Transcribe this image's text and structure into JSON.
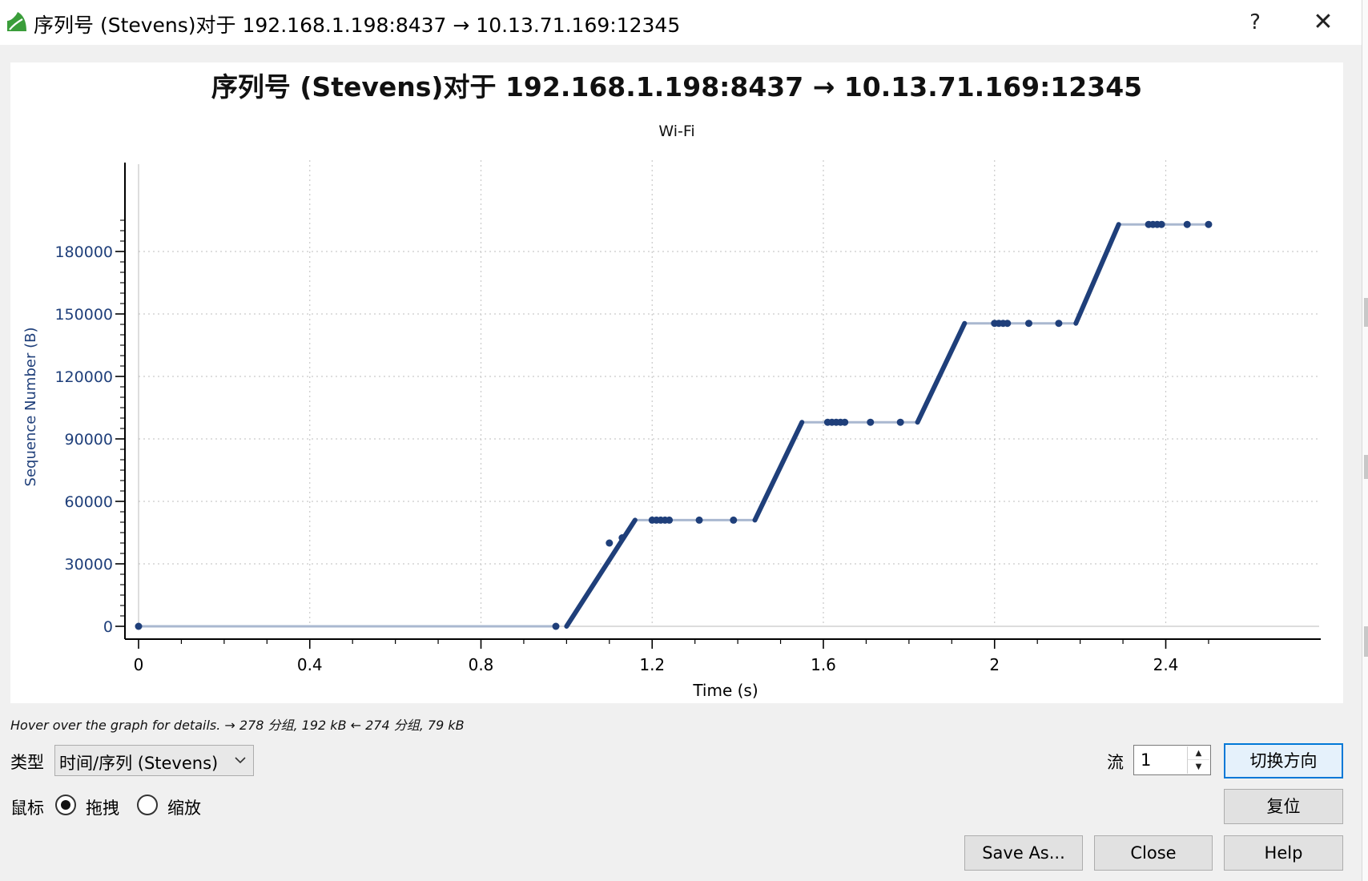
{
  "window": {
    "title": "序列号 (Stevens)对于 192.168.1.198:8437 → 10.13.71.169:12345",
    "help_glyph": "?",
    "close_glyph": "✕",
    "icon": "wireshark-fin-icon"
  },
  "chart_data": {
    "type": "scatter",
    "title": "序列号 (Stevens)对于 192.168.1.198:8437 → 10.13.71.169:12345",
    "subtitle": "Wi-Fi",
    "xlabel": "Time (s)",
    "ylabel": "Sequence Number (B)",
    "xlim": [
      0,
      2.52
    ],
    "ylim": [
      -5000,
      199000
    ],
    "xticks": [
      0,
      0.4,
      0.8,
      1.2,
      1.6,
      2,
      2.4
    ],
    "xtick_labels": [
      "0",
      "0.4",
      "0.8",
      "1.2",
      "1.6",
      "2",
      "2.4"
    ],
    "yticks": [
      0,
      30000,
      60000,
      90000,
      120000,
      150000,
      180000
    ],
    "ytick_labels": [
      "0",
      "30000",
      "60000",
      "90000",
      "120000",
      "150000",
      "180000"
    ],
    "grid": true,
    "series_color": "#1f3f7a",
    "line_color": "#aab8d0",
    "ramps": [
      {
        "x": [
          1.0,
          1.16
        ],
        "y": [
          0,
          51000
        ]
      },
      {
        "x": [
          1.44,
          1.55
        ],
        "y": [
          51000,
          98000
        ]
      },
      {
        "x": [
          1.82,
          1.93
        ],
        "y": [
          98000,
          145500
        ]
      },
      {
        "x": [
          2.19,
          2.29
        ],
        "y": [
          145500,
          193000
        ]
      }
    ],
    "flat_segments": [
      {
        "x": [
          0.0,
          0.975
        ],
        "y": 0
      },
      {
        "x": [
          1.16,
          1.44
        ],
        "y": 51000
      },
      {
        "x": [
          1.55,
          1.82
        ],
        "y": 98000
      },
      {
        "x": [
          1.93,
          2.19
        ],
        "y": 145500
      },
      {
        "x": [
          2.29,
          2.5
        ],
        "y": 193000
      }
    ],
    "points": [
      {
        "x": 0.0,
        "y": 0
      },
      {
        "x": 0.975,
        "y": 0
      },
      {
        "x": 1.1,
        "y": 40000
      },
      {
        "x": 1.13,
        "y": 42500
      },
      {
        "x": 1.2,
        "y": 51000
      },
      {
        "x": 1.21,
        "y": 51000
      },
      {
        "x": 1.22,
        "y": 51000
      },
      {
        "x": 1.23,
        "y": 51000
      },
      {
        "x": 1.24,
        "y": 51000
      },
      {
        "x": 1.31,
        "y": 51000
      },
      {
        "x": 1.39,
        "y": 51000
      },
      {
        "x": 1.61,
        "y": 98000
      },
      {
        "x": 1.62,
        "y": 98000
      },
      {
        "x": 1.63,
        "y": 98000
      },
      {
        "x": 1.64,
        "y": 98000
      },
      {
        "x": 1.65,
        "y": 98000
      },
      {
        "x": 1.71,
        "y": 98000
      },
      {
        "x": 1.78,
        "y": 98000
      },
      {
        "x": 2.0,
        "y": 145500
      },
      {
        "x": 2.01,
        "y": 145500
      },
      {
        "x": 2.02,
        "y": 145500
      },
      {
        "x": 2.03,
        "y": 145500
      },
      {
        "x": 2.08,
        "y": 145500
      },
      {
        "x": 2.15,
        "y": 145500
      },
      {
        "x": 2.36,
        "y": 193000
      },
      {
        "x": 2.37,
        "y": 193000
      },
      {
        "x": 2.38,
        "y": 193000
      },
      {
        "x": 2.39,
        "y": 193000
      },
      {
        "x": 2.45,
        "y": 193000
      },
      {
        "x": 2.5,
        "y": 193000
      }
    ]
  },
  "hint_text": "Hover over the graph for details. → 278 分组, 192 kB ← 274 分组, 79 kB",
  "controls": {
    "type_label": "类型",
    "type_value": "时间/序列 (Stevens)",
    "mouse_label": "鼠标",
    "drag_label": "拖拽",
    "zoom_label": "缩放",
    "drag_selected": true,
    "stream_label": "流",
    "stream_value": "1",
    "switch_direction_label": "切换方向",
    "reset_label": "复位",
    "save_as_label": "Save As...",
    "close_label": "Close",
    "help_label": "Help"
  }
}
